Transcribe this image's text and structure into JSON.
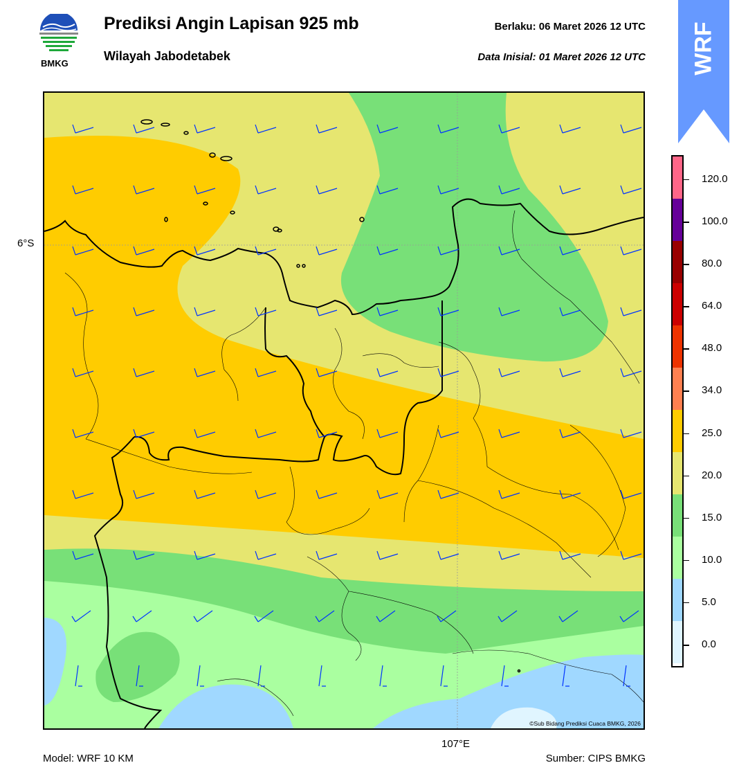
{
  "header": {
    "title": "Prediksi Angin Lapisan 925 mb",
    "subtitle": "Wilayah Jabodetabek",
    "valid_label": "Berlaku:  06 Maret 2026 12 UTC",
    "init_label": "Data Inisial:  01 Maret 2026 12 UTC"
  },
  "logo": {
    "text": "BMKG",
    "icon": "bmkg-logo"
  },
  "badge": {
    "text": "WRF",
    "color": "#6699ff",
    "icon": "up-arrow-icon"
  },
  "map": {
    "lat_label": "6°S",
    "lon_label": "107°E",
    "credit": "©Sub Bidang Prediksi Cuaca BMKG, 2026",
    "barb_color": "#0033ff",
    "border_color": "#000000"
  },
  "colorbar": {
    "labels": [
      "0.0",
      "5.0",
      "10.0",
      "15.0",
      "20.0",
      "25.0",
      "34.0",
      "48.0",
      "64.0",
      "80.0",
      "100.0",
      "120.0"
    ],
    "colors": [
      "#ffffff",
      "#e0f5ff",
      "#a0d8ff",
      "#aaffa0",
      "#78e078",
      "#e6e670",
      "#ffcc00",
      "#ff8050",
      "#ee3300",
      "#cc0000",
      "#990000",
      "#660099",
      "#ff6688"
    ]
  },
  "footer": {
    "model": "Model: WRF 10 KM",
    "source": "Sumber: CIPS BMKG"
  }
}
